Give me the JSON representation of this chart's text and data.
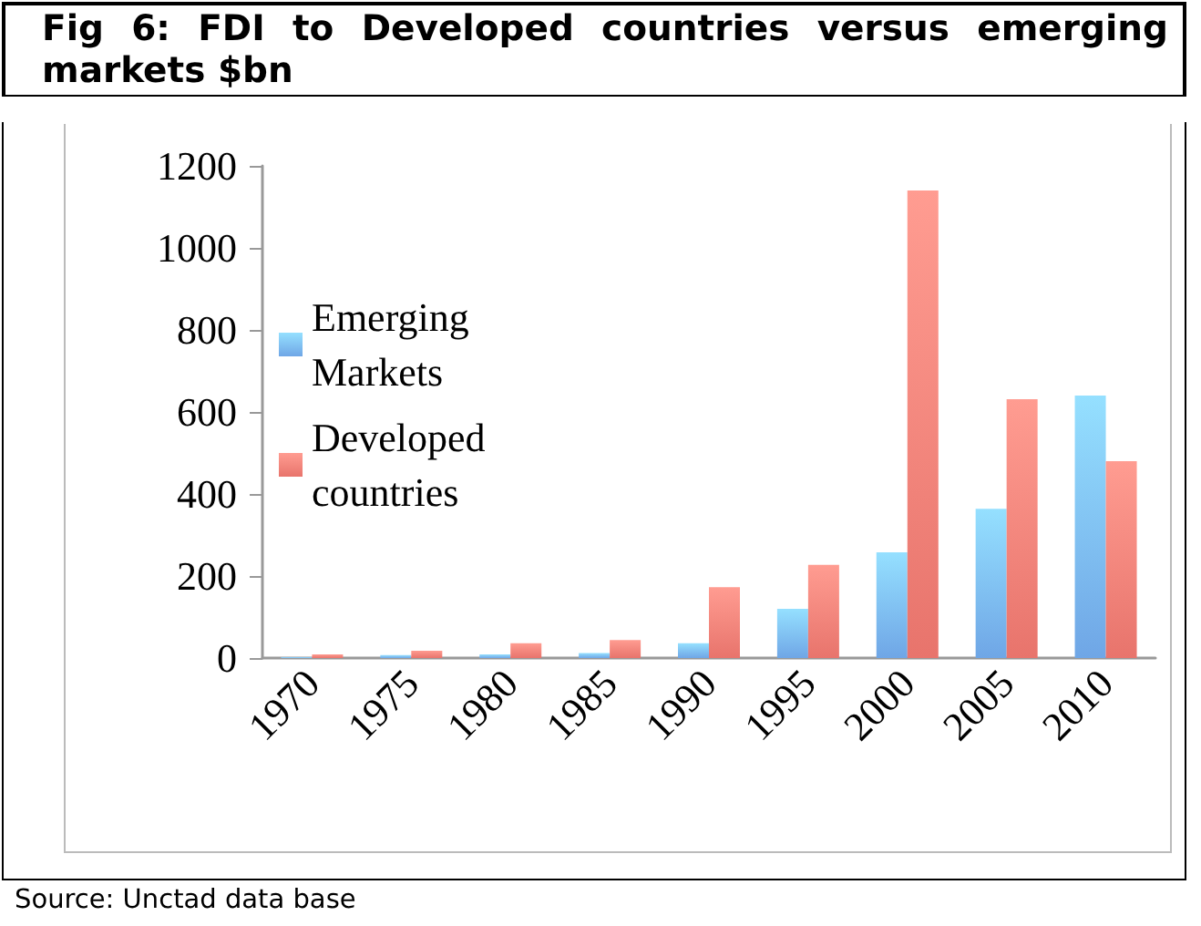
{
  "chart_data": {
    "type": "bar",
    "title": "Fig 6: FDI to Developed countries versus emerging markets $bn",
    "categories": [
      "1970",
      "1975",
      "1980",
      "1985",
      "1990",
      "1995",
      "2000",
      "2005",
      "2010"
    ],
    "series": [
      {
        "name": "Emerging Markets",
        "color": "#6fa6e6",
        "values": [
          2,
          7,
          9,
          12,
          36,
          120,
          258,
          364,
          640
        ]
      },
      {
        "name": "Developed countries",
        "color": "#e8746c",
        "values": [
          9,
          18,
          36,
          44,
          173,
          227,
          1140,
          631,
          480
        ]
      }
    ],
    "ylim": [
      0,
      1200
    ],
    "yticks": [
      0,
      200,
      400,
      600,
      800,
      1000,
      1200
    ],
    "grid": false,
    "legend": "left",
    "annotations": [
      "Source: Unctad data base"
    ]
  }
}
